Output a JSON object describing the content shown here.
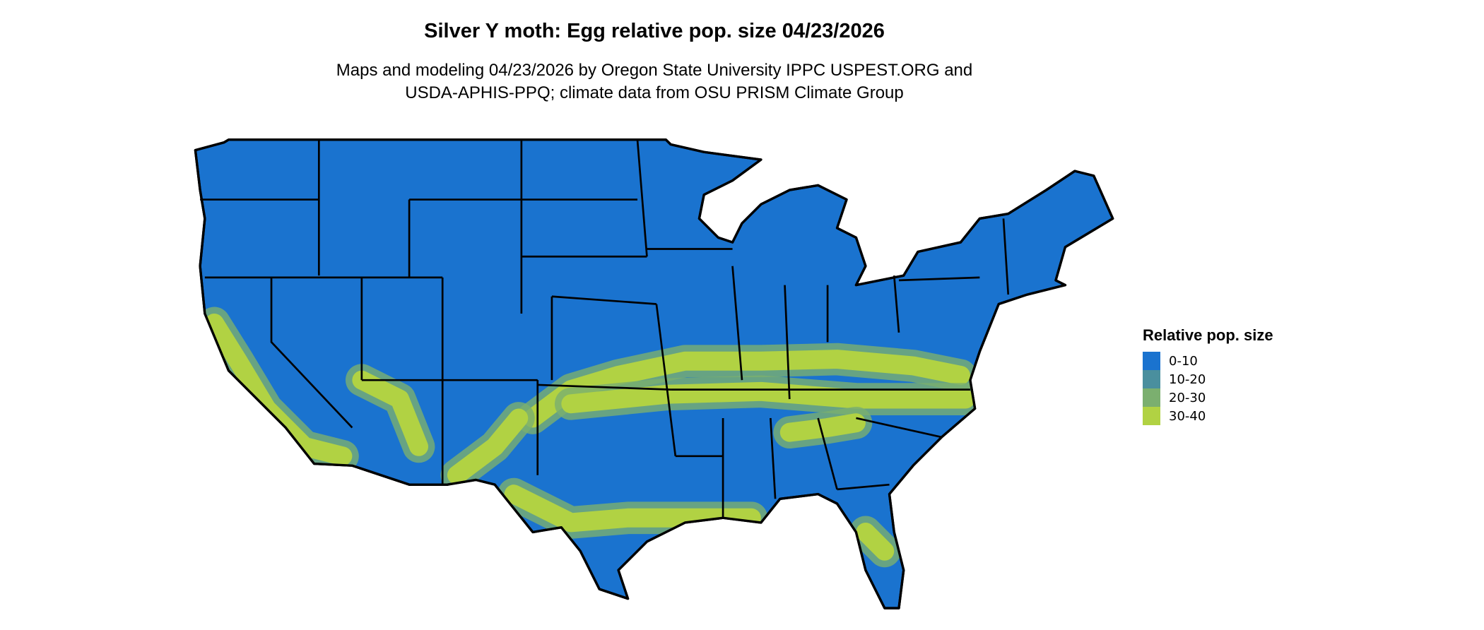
{
  "title": "Silver Y moth: Egg relative pop. size 04/23/2026",
  "subtitle_line1": "Maps and modeling 04/23/2026 by Oregon State University IPPC USPEST.ORG and",
  "subtitle_line2": "USDA-APHIS-PPQ; climate data from OSU PRISM Climate Group",
  "legend": {
    "title": "Relative pop. size",
    "items": [
      {
        "label": "0-10",
        "color": "#1A73CF"
      },
      {
        "label": "10-20",
        "color": "#4A8F9E"
      },
      {
        "label": "20-30",
        "color": "#7BAF6F"
      },
      {
        "label": "30-40",
        "color": "#B1D243"
      }
    ]
  },
  "map": {
    "region": "Contiguous United States",
    "border_color": "#000000"
  }
}
